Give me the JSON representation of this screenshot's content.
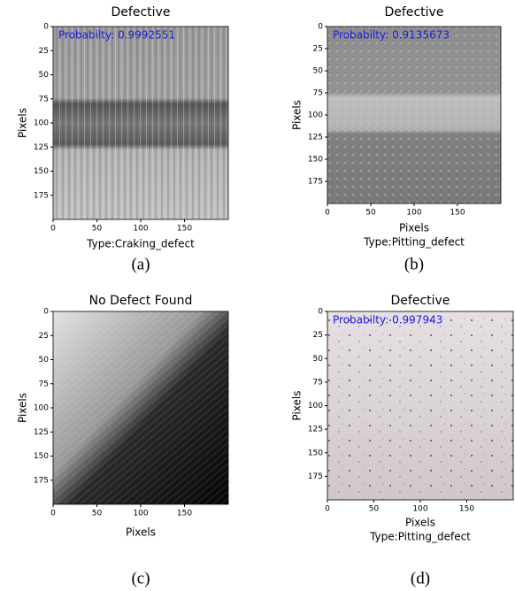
{
  "chart_data": [
    {
      "type": "image",
      "title": "Defective",
      "annotation": "Probabilty:  0.9992551",
      "xlabel": "Type:Craking_defect",
      "ylabel": "Pixels",
      "caption": "(a)",
      "xlim": [
        0,
        200
      ],
      "ylim": [
        200,
        0
      ],
      "xticks": [
        0,
        50,
        100,
        150
      ],
      "yticks": [
        0,
        25,
        50,
        75,
        100,
        125,
        150,
        175
      ]
    },
    {
      "type": "image",
      "title": "Defective",
      "annotation": "Probabilty:  0.9135673",
      "xlabel": "Pixels",
      "type_label": "Type:Pitting_defect",
      "ylabel": "Pixels",
      "caption": "(b)",
      "xlim": [
        0,
        200
      ],
      "ylim": [
        200,
        0
      ],
      "xticks": [
        0,
        50,
        100,
        150
      ],
      "yticks": [
        0,
        25,
        50,
        75,
        100,
        125,
        150,
        175
      ]
    },
    {
      "type": "image",
      "title": "No Defect Found",
      "xlabel": "Pixels",
      "ylabel": "Pixels",
      "caption": "(c)",
      "xlim": [
        0,
        200
      ],
      "ylim": [
        200,
        0
      ],
      "xticks": [
        0,
        50,
        100,
        150
      ],
      "yticks": [
        0,
        25,
        50,
        75,
        100,
        125,
        150,
        175
      ]
    },
    {
      "type": "image",
      "title": "Defective",
      "annotation": "Probabilty:  0.997943",
      "xlabel": "Pixels",
      "type_label": "Type:Pitting_defect",
      "ylabel": "Pixels",
      "caption": "(d)",
      "xlim": [
        0,
        200
      ],
      "ylim": [
        200,
        0
      ],
      "xticks": [
        0,
        50,
        100,
        150
      ],
      "yticks": [
        0,
        25,
        50,
        75,
        100,
        125,
        150,
        175
      ]
    }
  ]
}
